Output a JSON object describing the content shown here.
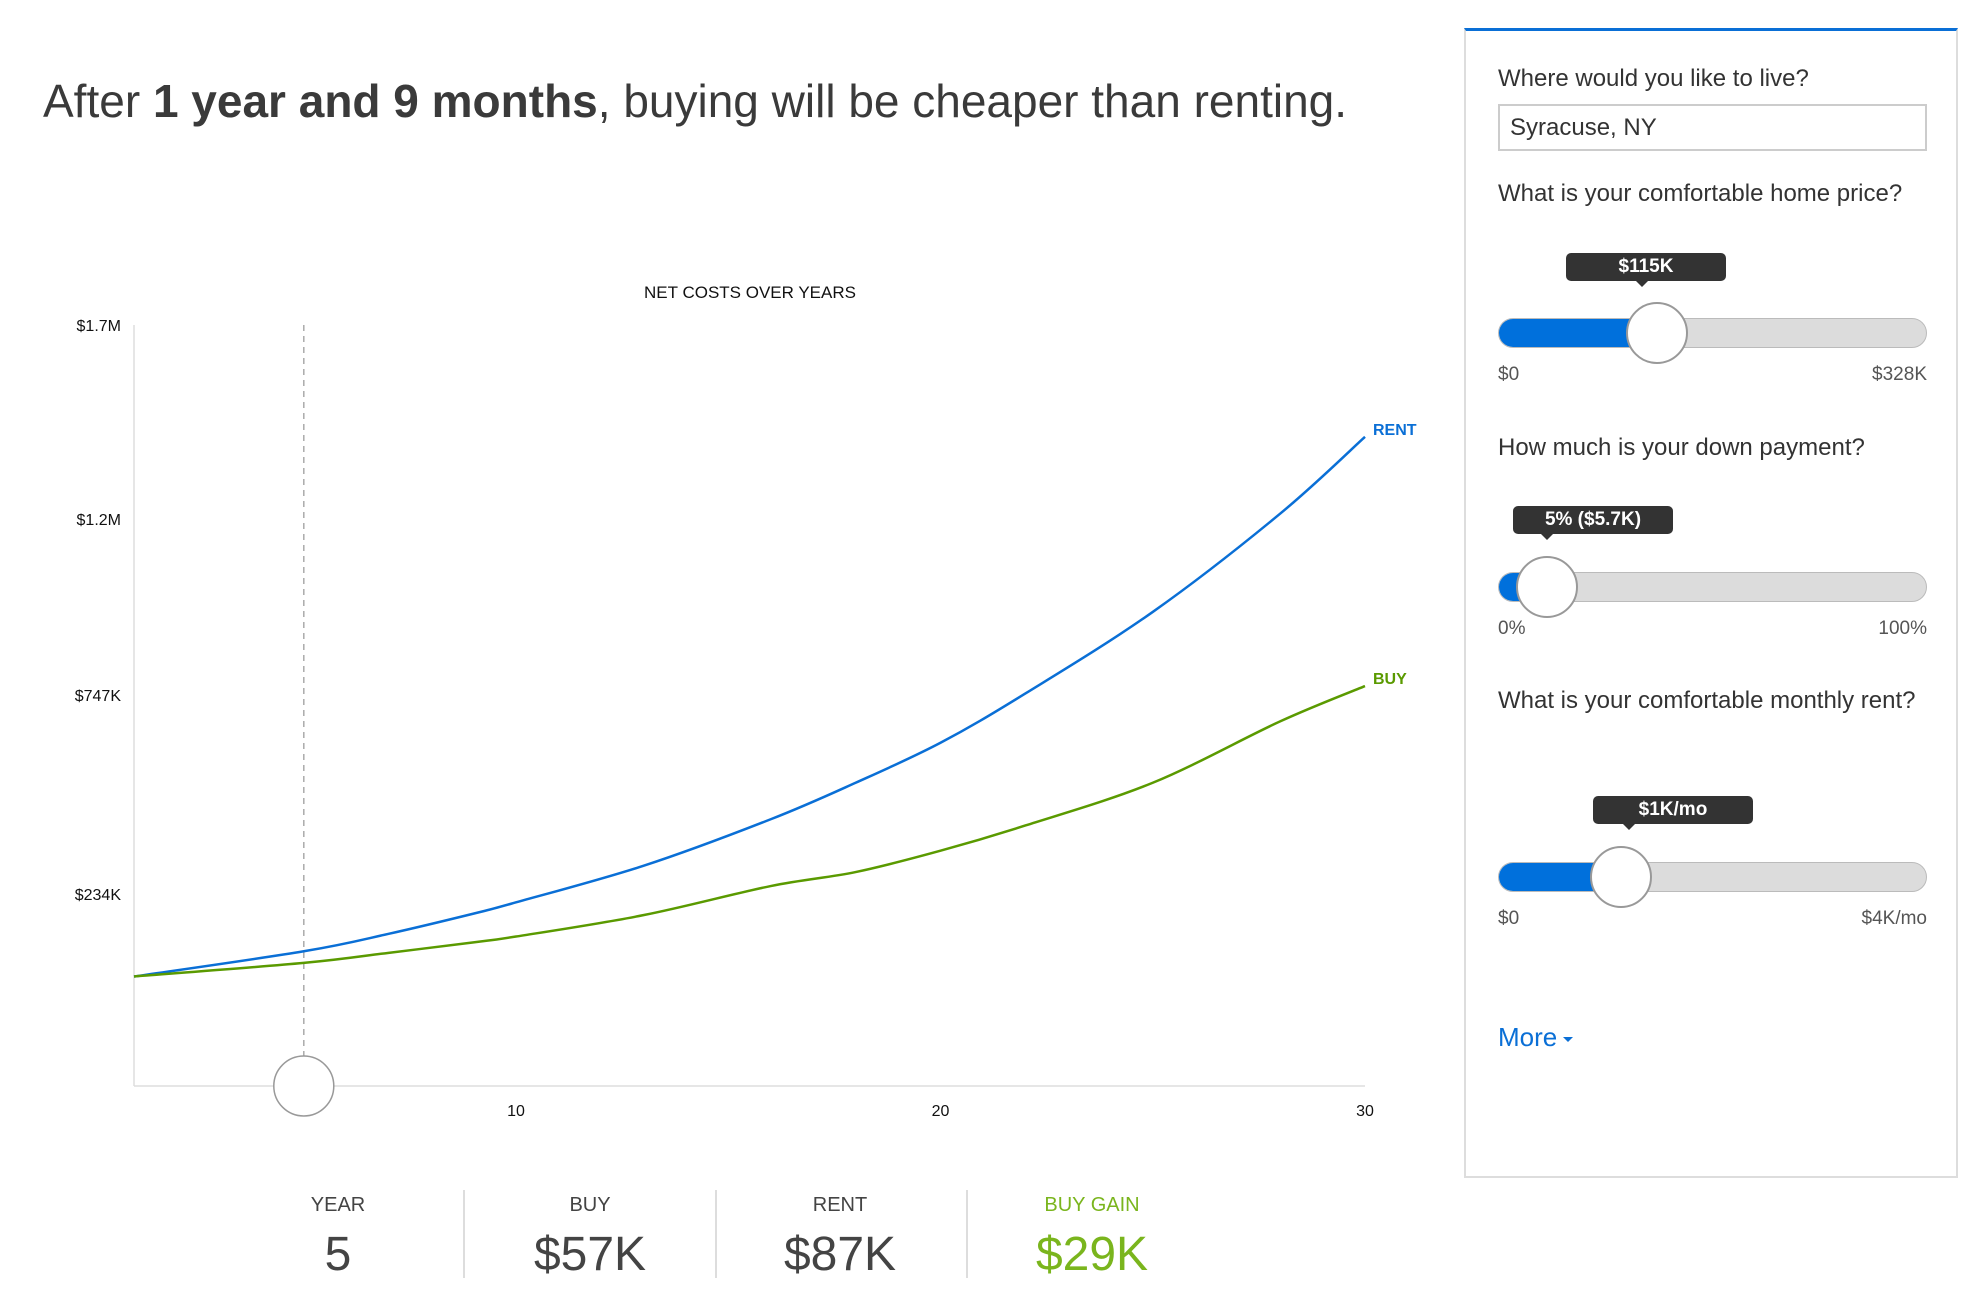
{
  "headline": {
    "prefix": "After ",
    "emphasis": "1 year and 9 months",
    "suffix": ", buying will be cheaper than renting."
  },
  "chart_data": {
    "type": "line",
    "title": "NET COSTS OVER YEARS",
    "x_ticks": [
      10,
      20,
      30
    ],
    "xlim": [
      1,
      30
    ],
    "y_ticks": [
      {
        "value": 1700000,
        "label": "$1.7M"
      },
      {
        "value": 1200000,
        "label": "$1.2M"
      },
      {
        "value": 747000,
        "label": "$747K"
      },
      {
        "value": 234000,
        "label": "$234K"
      }
    ],
    "ylim": [
      -260000,
      1700000
    ],
    "grid": false,
    "selected_year": 5,
    "series": [
      {
        "name": "RENT",
        "color": "#0a6fd6",
        "x": [
          1,
          5,
          7,
          9,
          10,
          13,
          16,
          18,
          20,
          22,
          25,
          28,
          30
        ],
        "y": [
          22000,
          87000,
          132000,
          184000,
          213000,
          307000,
          427000,
          521000,
          624000,
          751000,
          961000,
          1214000,
          1412000
        ]
      },
      {
        "name": "BUY",
        "color": "#5a9a00",
        "x": [
          1,
          5,
          7,
          9,
          10,
          13,
          16,
          18,
          20,
          22,
          25,
          28,
          30
        ],
        "y": [
          22000,
          57000,
          83000,
          110000,
          125000,
          180000,
          255000,
          291000,
          346000,
          411000,
          521000,
          679000,
          770000
        ]
      }
    ]
  },
  "stats": [
    {
      "label": "YEAR",
      "value": "5"
    },
    {
      "label": "BUY",
      "value": "$57K"
    },
    {
      "label": "RENT",
      "value": "$87K"
    },
    {
      "label": "BUY GAIN",
      "value": "$29K"
    }
  ],
  "panel": {
    "location_label": "Where would you like to live?",
    "location_value": "Syracuse, NY",
    "home_price": {
      "label": "What is your comfortable home price?",
      "tooltip": "$115K",
      "min": "$0",
      "max": "$328K",
      "fraction": 0.35
    },
    "down_payment": {
      "label": "How much is your down payment?",
      "tooltip": "5% ($5.7K)",
      "min": "0%",
      "max": "100%",
      "fraction": 0.05
    },
    "rent": {
      "label": "What is your comfortable monthly rent?",
      "tooltip": "$1K/mo",
      "min": "$0",
      "max": "$4K/mo",
      "fraction": 0.25
    },
    "more_label": "More",
    "accent": "#0a6fd6"
  }
}
